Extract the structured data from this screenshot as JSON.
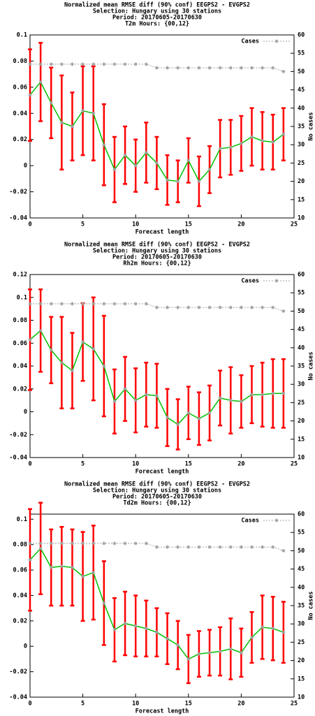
{
  "chart_data": [
    {
      "type": "line",
      "title": [
        "Normalized mean RMSE diff (90% conf) EEGPS2 - EVGPS2",
        "Selection: Hungary using    30 stations",
        "Period: 20170605-20170630",
        "T2m    Hours: {00,12}"
      ],
      "x_label": "Forecast length",
      "y2_label": "No cases",
      "x": [
        0,
        1,
        2,
        3,
        4,
        5,
        6,
        7,
        8,
        9,
        10,
        11,
        12,
        13,
        14,
        15,
        16,
        17,
        18,
        19,
        20,
        21,
        22,
        23,
        24
      ],
      "xlim": [
        0,
        25
      ],
      "xticks": [
        0,
        5,
        10,
        15,
        20,
        25
      ],
      "ylim": [
        -0.04,
        0.1
      ],
      "yticks": [
        -0.04,
        -0.02,
        0,
        0.02,
        0.04,
        0.06,
        0.08,
        0.1
      ],
      "y2lim": [
        10,
        60
      ],
      "y2ticks": [
        10,
        15,
        20,
        25,
        30,
        35,
        40,
        45,
        50,
        55,
        60
      ],
      "legend": "top-right",
      "series": [
        {
          "color": "#00c000",
          "error_color": "#ff0000",
          "values": [
            0.054,
            0.064,
            0.048,
            0.033,
            0.03,
            0.042,
            0.04,
            0.016,
            -0.003,
            0.008,
            0.0,
            0.01,
            0.002,
            -0.011,
            -0.012,
            0.004,
            -0.012,
            -0.003,
            0.013,
            0.014,
            0.017,
            0.022,
            0.019,
            0.018,
            0.024
          ],
          "errors": [
            0.035,
            0.03,
            0.027,
            0.036,
            0.026,
            0.034,
            0.036,
            0.031,
            0.025,
            0.022,
            0.02,
            0.023,
            0.02,
            0.019,
            0.016,
            0.017,
            0.019,
            0.018,
            0.022,
            0.021,
            0.021,
            0.022,
            0.022,
            0.021,
            0.02
          ]
        },
        {
          "name": "Cases",
          "color": "#a0a0a0",
          "axis": "y2",
          "values": [
            52,
            52,
            52,
            52,
            52,
            52,
            52,
            52,
            52,
            52,
            52,
            52,
            51,
            51,
            51,
            51,
            51,
            51,
            51,
            51,
            51,
            51,
            51,
            51,
            50
          ]
        }
      ]
    },
    {
      "type": "line",
      "title": [
        "Normalized mean RMSE diff (90% conf) EEGPS2 - EVGPS2",
        "Selection: Hungary using    30 stations",
        "Period: 20170605-20170630",
        "Rh2m    Hours: {00,12}"
      ],
      "x_label": "Forecast length",
      "y2_label": "No cases",
      "x": [
        0,
        1,
        2,
        3,
        4,
        5,
        6,
        7,
        8,
        9,
        10,
        11,
        12,
        13,
        14,
        15,
        16,
        17,
        18,
        19,
        20,
        21,
        22,
        23,
        24
      ],
      "xlim": [
        0,
        25
      ],
      "xticks": [
        0,
        5,
        10,
        15,
        20,
        25
      ],
      "ylim": [
        -0.04,
        0.12
      ],
      "yticks": [
        -0.04,
        -0.02,
        0,
        0.02,
        0.04,
        0.06,
        0.08,
        0.1,
        0.12
      ],
      "y2lim": [
        10,
        60
      ],
      "y2ticks": [
        10,
        15,
        20,
        25,
        30,
        35,
        40,
        45,
        50,
        55,
        60
      ],
      "legend": "top-right",
      "series": [
        {
          "color": "#00c000",
          "error_color": "#ff0000",
          "values": [
            0.063,
            0.071,
            0.054,
            0.043,
            0.036,
            0.061,
            0.055,
            0.04,
            0.009,
            0.02,
            0.01,
            0.015,
            0.014,
            -0.005,
            -0.011,
            -0.001,
            -0.006,
            -0.001,
            0.012,
            0.01,
            0.009,
            0.015,
            0.015,
            0.016,
            0.016
          ],
          "errors": [
            0.044,
            0.036,
            0.029,
            0.04,
            0.033,
            0.034,
            0.045,
            0.044,
            0.028,
            0.028,
            0.028,
            0.028,
            0.028,
            0.025,
            0.022,
            0.023,
            0.023,
            0.024,
            0.024,
            0.029,
            0.023,
            0.025,
            0.028,
            0.03,
            0.03
          ]
        },
        {
          "name": "Cases",
          "color": "#a0a0a0",
          "axis": "y2",
          "values": [
            52,
            52,
            52,
            52,
            52,
            52,
            52,
            52,
            52,
            52,
            52,
            52,
            51,
            51,
            51,
            51,
            51,
            51,
            51,
            51,
            51,
            51,
            51,
            51,
            50
          ]
        }
      ]
    },
    {
      "type": "line",
      "title": [
        "Normalized mean RMSE diff (90% conf) EEGPS2 - EVGPS2",
        "Selection: Hungary using    30 stations",
        "Period: 20170605-20170630",
        "Td2m    Hours: {00,12}"
      ],
      "x_label": "Forecast length",
      "y2_label": "No cases",
      "x": [
        0,
        1,
        2,
        3,
        4,
        5,
        6,
        7,
        8,
        9,
        10,
        11,
        12,
        13,
        14,
        15,
        16,
        17,
        18,
        19,
        20,
        21,
        22,
        23,
        24
      ],
      "xlim": [
        0,
        25
      ],
      "xticks": [
        0,
        5,
        10,
        15,
        20,
        25
      ],
      "ylim": [
        -0.04,
        0.104
      ],
      "yticks": [
        -0.04,
        -0.02,
        0,
        0.02,
        0.04,
        0.06,
        0.08,
        0.1
      ],
      "y2lim": [
        10,
        60
      ],
      "y2ticks": [
        10,
        15,
        20,
        25,
        30,
        35,
        40,
        45,
        50,
        55,
        60
      ],
      "legend": "top-right",
      "series": [
        {
          "color": "#00c000",
          "error_color": "#ff0000",
          "values": [
            0.068,
            0.077,
            0.062,
            0.063,
            0.062,
            0.055,
            0.058,
            0.034,
            0.013,
            0.018,
            0.016,
            0.014,
            0.011,
            0.006,
            0.001,
            -0.01,
            -0.006,
            -0.005,
            -0.004,
            -0.002,
            -0.005,
            0.007,
            0.015,
            0.014,
            0.011
          ],
          "errors": [
            0.04,
            0.036,
            0.03,
            0.031,
            0.03,
            0.035,
            0.037,
            0.033,
            0.025,
            0.025,
            0.024,
            0.022,
            0.019,
            0.02,
            0.019,
            0.019,
            0.018,
            0.018,
            0.019,
            0.024,
            0.019,
            0.02,
            0.025,
            0.025,
            0.024
          ]
        },
        {
          "name": "Cases",
          "color": "#a0a0a0",
          "axis": "y2",
          "values": [
            52,
            52,
            52,
            52,
            52,
            52,
            52,
            52,
            52,
            52,
            52,
            52,
            51,
            51,
            51,
            51,
            51,
            51,
            51,
            51,
            51,
            51,
            51,
            51,
            50
          ]
        }
      ]
    }
  ]
}
